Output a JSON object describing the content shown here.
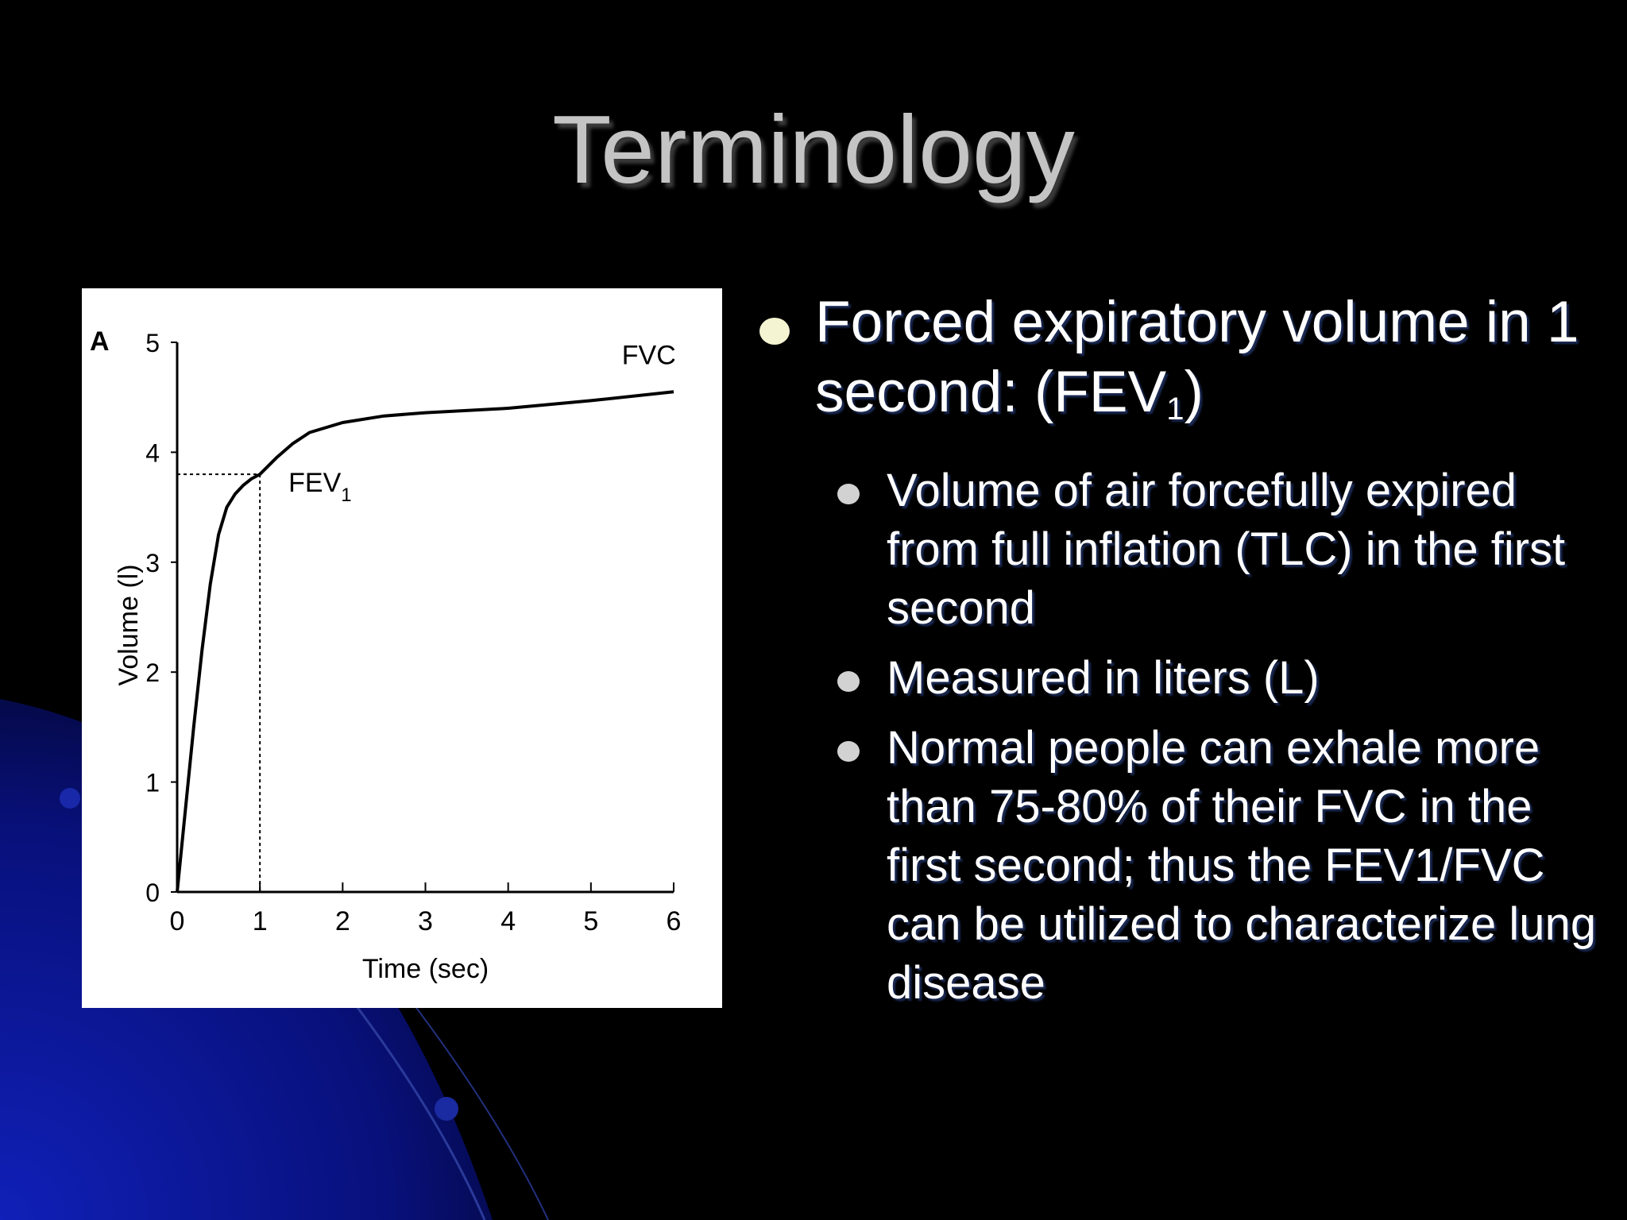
{
  "slide": {
    "title": "Terminology"
  },
  "colors": {
    "background": "#000000",
    "accent_blue": "#0a1aa8",
    "title": "#c4c4c4"
  },
  "bullets": {
    "main": {
      "text": "Forced expiratory volume in 1 second: (FEV",
      "sub": "1",
      "tail": ")"
    },
    "sub_items": [
      "Volume of air forcefully expired from full inflation (TLC) in the first second",
      "Measured in liters (L)",
      "Normal people can exhale more than 75-80% of their FVC in the first second; thus the FEV1/FVC can be utilized to characterize lung disease"
    ]
  },
  "chart_data": {
    "type": "line",
    "panel_label": "A",
    "xlabel": "Time (sec)",
    "ylabel": "Volume (l)",
    "xlim": [
      0,
      6
    ],
    "ylim": [
      0,
      5
    ],
    "x_ticks": [
      0,
      1,
      2,
      3,
      4,
      5,
      6
    ],
    "y_ticks": [
      0,
      1,
      2,
      3,
      4,
      5
    ],
    "grid": false,
    "series": [
      {
        "x": [
          0,
          0.1,
          0.2,
          0.3,
          0.4,
          0.5,
          0.6,
          0.7,
          0.8,
          0.9,
          1.0,
          1.2,
          1.4,
          1.6,
          2.0,
          2.5,
          3.0,
          4.0,
          5.0,
          6.0
        ],
        "y": [
          0,
          0.75,
          1.5,
          2.2,
          2.8,
          3.25,
          3.5,
          3.62,
          3.7,
          3.76,
          3.8,
          3.95,
          4.08,
          4.18,
          4.27,
          4.33,
          4.36,
          4.4,
          4.47,
          4.55
        ]
      }
    ],
    "annotations": [
      {
        "label": "FEV",
        "label_sub": "1",
        "x": 1.0,
        "y": 3.8
      },
      {
        "label": "FVC",
        "x": 5.7,
        "y": 4.8
      }
    ]
  }
}
